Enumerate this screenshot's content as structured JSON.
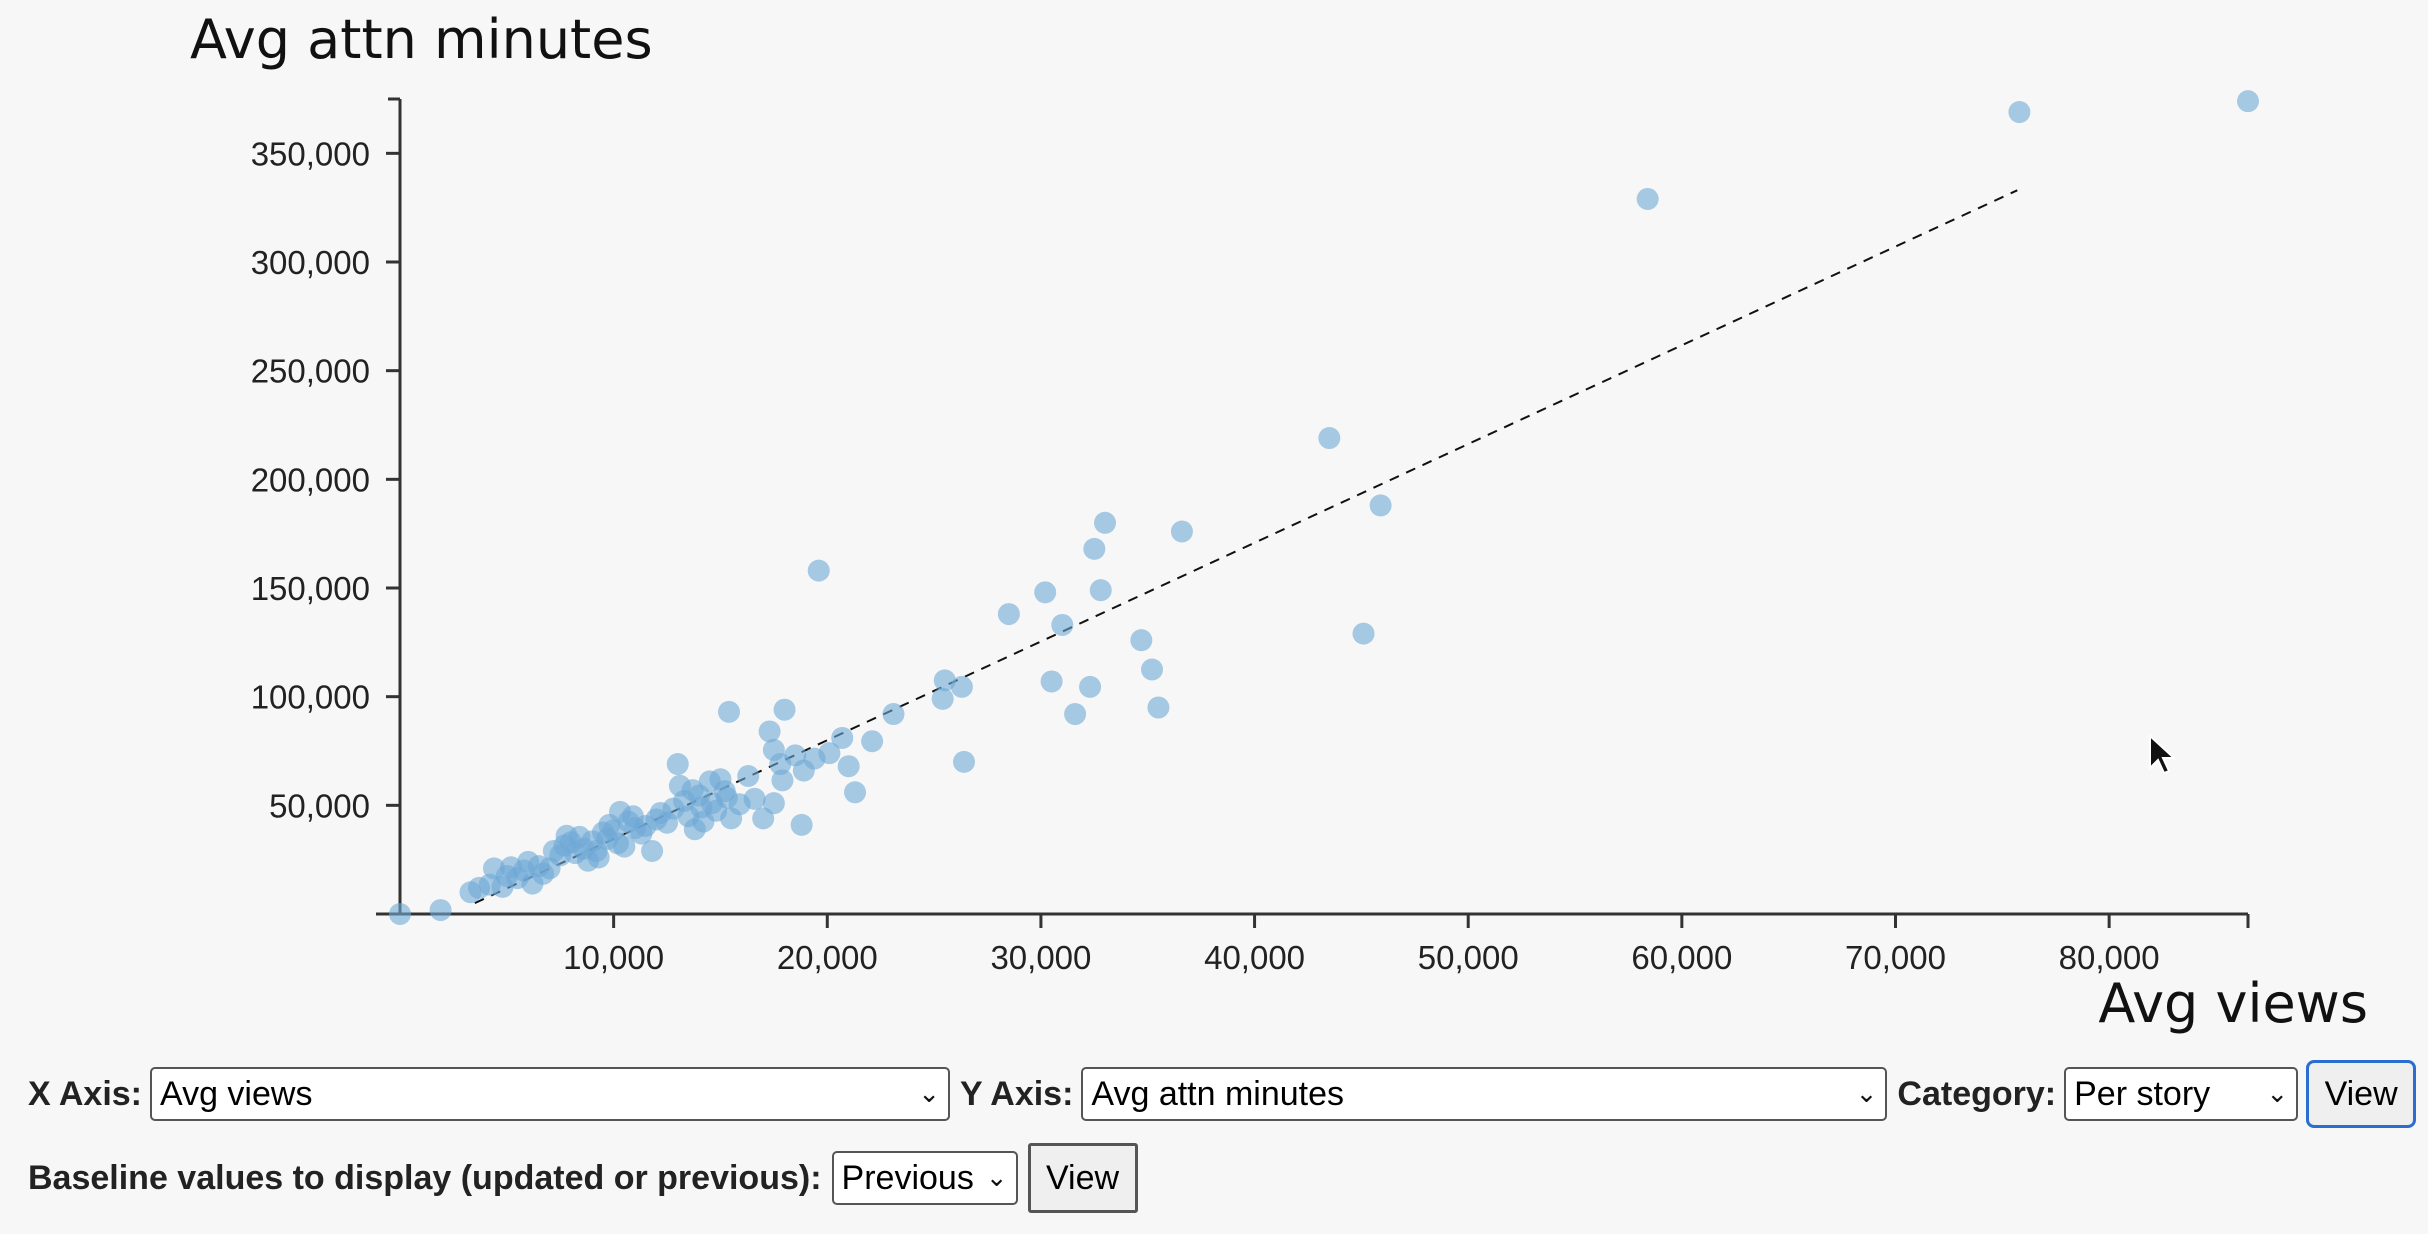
{
  "chart_data": {
    "type": "scatter",
    "title": "Avg attn minutes",
    "xlabel": "Avg views",
    "ylabel": "Avg attn minutes",
    "xlim": [
      0,
      86500
    ],
    "ylim": [
      0,
      375000
    ],
    "x_ticks": [
      10000,
      20000,
      30000,
      40000,
      50000,
      60000,
      70000,
      80000
    ],
    "x_tick_labels": [
      "10,000",
      "20,000",
      "30,000",
      "40,000",
      "50,000",
      "60,000",
      "70,000",
      "80,000"
    ],
    "y_ticks": [
      50000,
      100000,
      150000,
      200000,
      250000,
      300000,
      350000
    ],
    "y_tick_labels": [
      "50,000",
      "100,000",
      "150,000",
      "200,000",
      "250,000",
      "300,000",
      "350,000"
    ],
    "grid": false,
    "trendline": {
      "x": [
        3500,
        75700
      ],
      "y": [
        5000,
        333000
      ],
      "style": "dashed"
    },
    "points": [
      [
        0,
        0
      ],
      [
        1900,
        1800
      ],
      [
        3300,
        10000
      ],
      [
        3700,
        12000
      ],
      [
        4200,
        13500
      ],
      [
        4400,
        21000
      ],
      [
        4800,
        12500
      ],
      [
        5000,
        17500
      ],
      [
        5200,
        21500
      ],
      [
        5500,
        16500
      ],
      [
        5800,
        20000
      ],
      [
        6000,
        24000
      ],
      [
        6200,
        14000
      ],
      [
        6500,
        22000
      ],
      [
        6700,
        18500
      ],
      [
        7000,
        21000
      ],
      [
        7200,
        29000
      ],
      [
        7500,
        27000
      ],
      [
        7700,
        31500
      ],
      [
        7800,
        36000
      ],
      [
        8000,
        33000
      ],
      [
        8200,
        28000
      ],
      [
        8400,
        35500
      ],
      [
        8600,
        30000
      ],
      [
        8800,
        24500
      ],
      [
        9000,
        33500
      ],
      [
        9200,
        29000
      ],
      [
        9300,
        26000
      ],
      [
        9500,
        37500
      ],
      [
        9700,
        34500
      ],
      [
        9800,
        41000
      ],
      [
        10000,
        38500
      ],
      [
        10200,
        32500
      ],
      [
        10300,
        47000
      ],
      [
        10500,
        31000
      ],
      [
        10700,
        42500
      ],
      [
        10900,
        45000
      ],
      [
        11000,
        39500
      ],
      [
        11300,
        37000
      ],
      [
        11500,
        40500
      ],
      [
        11800,
        29000
      ],
      [
        12000,
        43500
      ],
      [
        12200,
        46500
      ],
      [
        12500,
        42000
      ],
      [
        12800,
        48500
      ],
      [
        13000,
        69000
      ],
      [
        13100,
        59000
      ],
      [
        13300,
        52000
      ],
      [
        13500,
        45000
      ],
      [
        13700,
        57000
      ],
      [
        13800,
        39000
      ],
      [
        14000,
        54500
      ],
      [
        14100,
        49000
      ],
      [
        14200,
        42500
      ],
      [
        14500,
        61000
      ],
      [
        14600,
        51000
      ],
      [
        14800,
        47500
      ],
      [
        15000,
        62000
      ],
      [
        15200,
        56500
      ],
      [
        15300,
        53500
      ],
      [
        15400,
        93000
      ],
      [
        15500,
        44000
      ],
      [
        15900,
        50500
      ],
      [
        16300,
        63500
      ],
      [
        16600,
        53000
      ],
      [
        17000,
        44000
      ],
      [
        17300,
        84000
      ],
      [
        17500,
        51000
      ],
      [
        17500,
        75500
      ],
      [
        17800,
        69000
      ],
      [
        17900,
        61500
      ],
      [
        18000,
        94000
      ],
      [
        18500,
        73000
      ],
      [
        18800,
        41000
      ],
      [
        18900,
        66000
      ],
      [
        19400,
        71500
      ],
      [
        19600,
        158000
      ],
      [
        20100,
        74000
      ],
      [
        20700,
        81000
      ],
      [
        21000,
        68000
      ],
      [
        21300,
        56000
      ],
      [
        22100,
        79500
      ],
      [
        23100,
        92000
      ],
      [
        25400,
        99000
      ],
      [
        25500,
        107500
      ],
      [
        26300,
        104500
      ],
      [
        26400,
        70000
      ],
      [
        28500,
        138000
      ],
      [
        30200,
        148000
      ],
      [
        30500,
        107000
      ],
      [
        31000,
        133000
      ],
      [
        31600,
        92000
      ],
      [
        32300,
        104500
      ],
      [
        32500,
        168000
      ],
      [
        32800,
        149000
      ],
      [
        33000,
        180000
      ],
      [
        34700,
        126000
      ],
      [
        35200,
        112500
      ],
      [
        35500,
        95000
      ],
      [
        36600,
        176000
      ],
      [
        43500,
        219000
      ],
      [
        45100,
        129000
      ],
      [
        45900,
        188000
      ],
      [
        58400,
        329000
      ],
      [
        75800,
        369000
      ],
      [
        86500,
        374000
      ]
    ]
  },
  "controls": {
    "x_axis_label": "X Axis:",
    "x_axis_value": "Avg views",
    "y_axis_label": "Y Axis:",
    "y_axis_value": "Avg attn minutes",
    "category_label": "Category:",
    "category_value": "Per story",
    "view_button_1": "View",
    "baseline_label": "Baseline values to display (updated or previous):",
    "baseline_value": "Previous",
    "view_button_2": "View"
  }
}
